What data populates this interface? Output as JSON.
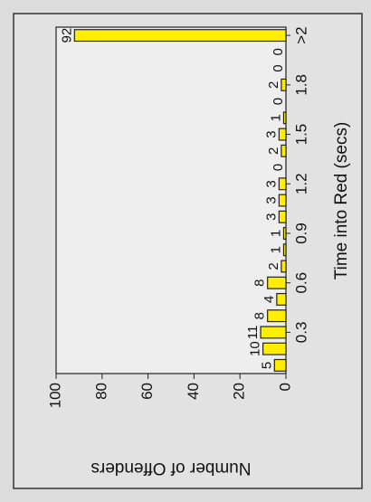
{
  "chart_data": {
    "type": "bar",
    "x_label": "Time into Red (secs)",
    "y_label": "Number of Offenders",
    "categories": [
      null,
      null,
      "0.3",
      null,
      null,
      "0.6",
      null,
      null,
      "0.9",
      null,
      null,
      "1.2",
      null,
      null,
      "1.5",
      null,
      null,
      "1.8",
      null,
      null,
      ">2"
    ],
    "values": [
      5,
      10,
      11,
      8,
      4,
      8,
      2,
      1,
      1,
      3,
      3,
      3,
      0,
      2,
      3,
      1,
      0,
      2,
      0,
      0,
      92
    ],
    "color": "#ffee00",
    "ylim": [
      0,
      100
    ],
    "yticks": [
      0,
      20,
      40,
      60,
      80,
      100
    ]
  }
}
